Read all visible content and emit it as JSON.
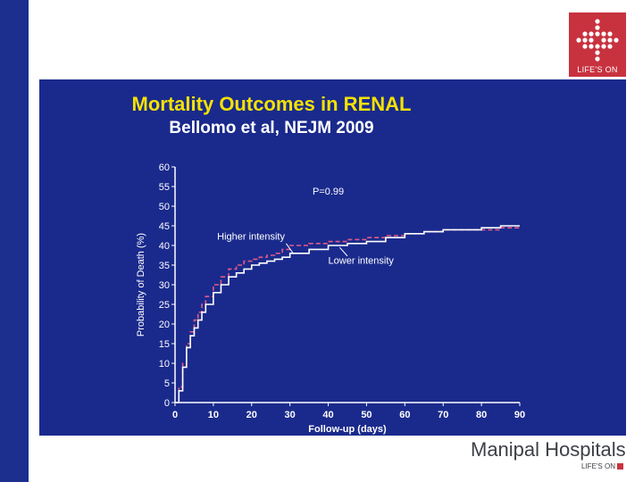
{
  "slide": {
    "title": "Mortality Outcomes in RENAL",
    "subtitle": "Bellomo et al, NEJM 2009"
  },
  "branding": {
    "logo_text": "LIFE'S ON",
    "hospital_name": "Manipal Hospitals",
    "footer_tagline": "LIFE'S ON",
    "accent_color": "#c8323f",
    "panel_color": "#1a2a8c"
  },
  "chart_data": {
    "type": "line",
    "title": "",
    "xlabel": "Follow-up (days)",
    "ylabel": "Probability of Death (%)",
    "xlim": [
      0,
      90
    ],
    "ylim": [
      0,
      60
    ],
    "x_ticks": [
      0,
      10,
      20,
      30,
      40,
      50,
      60,
      70,
      80,
      90
    ],
    "y_ticks": [
      0,
      5,
      10,
      15,
      20,
      25,
      30,
      35,
      40,
      45,
      50,
      55,
      60
    ],
    "annotation": "P=0.99",
    "series": [
      {
        "name": "Higher intensity",
        "color": "#e05a8a",
        "style": "dashed",
        "x": [
          0,
          1,
          2,
          3,
          4,
          5,
          6,
          7,
          8,
          10,
          12,
          14,
          16,
          18,
          20,
          22,
          24,
          26,
          28,
          30,
          35,
          40,
          45,
          50,
          55,
          60,
          65,
          70,
          75,
          80,
          85,
          90
        ],
        "y": [
          0,
          4,
          10,
          15,
          18,
          21,
          23,
          25,
          27,
          30,
          32,
          34,
          35,
          36,
          36.5,
          37,
          37.5,
          38,
          39,
          40,
          40.5,
          41,
          41.5,
          42,
          42.5,
          43,
          43.5,
          44,
          44,
          44,
          44.5,
          45
        ]
      },
      {
        "name": "Lower intensity",
        "color": "#ffffff",
        "style": "solid",
        "x": [
          0,
          1,
          2,
          3,
          4,
          5,
          6,
          7,
          8,
          10,
          12,
          14,
          16,
          18,
          20,
          22,
          24,
          26,
          28,
          30,
          35,
          40,
          45,
          50,
          55,
          60,
          65,
          70,
          75,
          80,
          85,
          90
        ],
        "y": [
          0,
          3,
          9,
          14,
          17,
          19,
          21,
          23,
          25,
          28,
          30,
          32,
          33,
          34,
          35,
          35.5,
          36,
          36.5,
          37,
          38,
          39,
          40,
          40.5,
          41,
          42,
          43,
          43.5,
          44,
          44,
          44.5,
          45,
          45
        ]
      }
    ],
    "labels": [
      {
        "text": "Higher intensity",
        "series": "Higher intensity"
      },
      {
        "text": "Lower intensity",
        "series": "Lower intensity"
      }
    ]
  }
}
